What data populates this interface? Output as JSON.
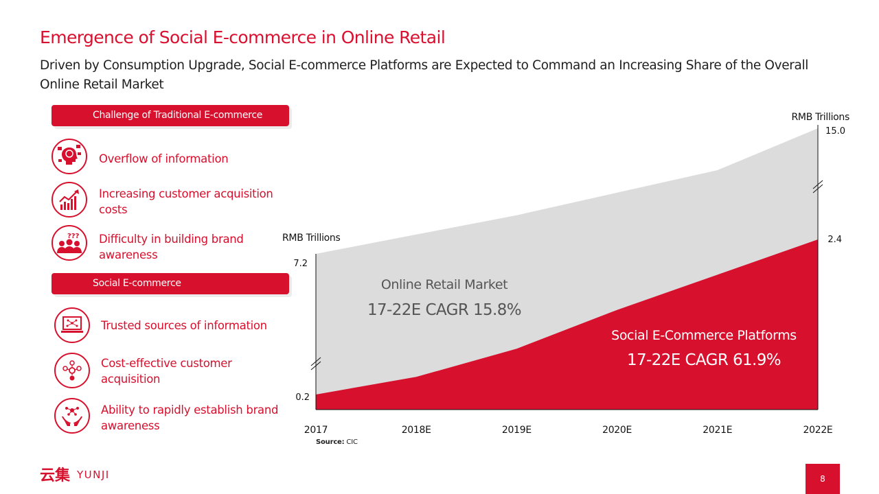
{
  "title": "Emergence of Social E-commerce in Online Retail",
  "subtitle": "Driven by Consumption Upgrade, Social E-commerce Platforms are Expected to Command an Increasing Share of the Overall Online Retail Market",
  "left_panel": {
    "challenge_header": "Challenge of Traditional E-commerce",
    "challenges": [
      {
        "icon": "head-overload-icon",
        "text": "Overflow of information"
      },
      {
        "icon": "rising-chart-icon",
        "text": "Increasing customer acquisition costs"
      },
      {
        "icon": "confused-people-icon",
        "text": "Difficulty in building brand awareness"
      }
    ],
    "social_header": "Social E-commerce",
    "benefits": [
      {
        "icon": "laptop-network-icon",
        "text": "Trusted sources of information"
      },
      {
        "icon": "coin-network-icon",
        "text": "Cost-effective customer acquisition"
      },
      {
        "icon": "hands-network-icon",
        "text": "Ability to rapidly establish brand awareness"
      }
    ]
  },
  "chart_data": {
    "type": "area",
    "categories": [
      "2017",
      "2018E",
      "2019E",
      "2020E",
      "2021E",
      "2022E"
    ],
    "series": [
      {
        "name": "Online Retail Market",
        "values": [
          7.2,
          8.4,
          9.6,
          11.0,
          12.4,
          15.0
        ],
        "color": "#dcdcdc"
      },
      {
        "name": "Social E-Commerce Platforms",
        "values": [
          0.2,
          0.45,
          0.85,
          1.4,
          1.9,
          2.4
        ],
        "color": "#d6102d"
      }
    ],
    "left_axis": {
      "label": "RMB Trillions",
      "ticks": [
        "7.2",
        "0.2"
      ]
    },
    "right_axis": {
      "label": "RMB Trillions",
      "ticks": [
        "15.0",
        "2.4"
      ]
    },
    "annotations": {
      "online_retail_label": "Online Retail Market",
      "online_retail_cagr": "17-22E CAGR 15.8%",
      "social_label": "Social E-Commerce Platforms",
      "social_cagr": "17-22E CAGR 61.9%"
    },
    "axis_breaks": true
  },
  "source": {
    "label": "Source:",
    "text": " CIC"
  },
  "logo": {
    "chinese": "云集",
    "latin": "YUNJI"
  },
  "page_number": "8",
  "colors": {
    "brand": "#d6102d",
    "market_area": "#dcdcdc"
  }
}
